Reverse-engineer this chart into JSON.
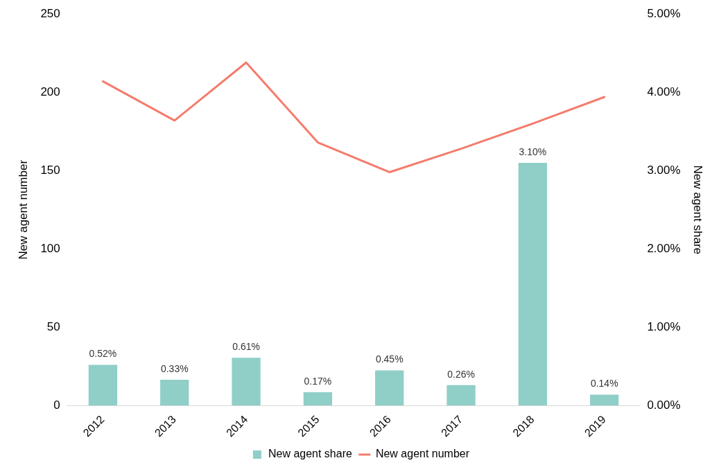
{
  "chart_data": {
    "type": "bar",
    "categories": [
      "2012",
      "2013",
      "2014",
      "2015",
      "2016",
      "2017",
      "2018",
      "2019"
    ],
    "ylabel": "New agent number",
    "y2label": "New agent share",
    "ylim": [
      0,
      250
    ],
    "yticks": [
      0,
      50,
      100,
      150,
      200,
      250
    ],
    "y2lim": [
      0,
      5
    ],
    "y2ticks": [
      {
        "value": 0,
        "label": "0.00%"
      },
      {
        "value": 1,
        "label": "1.00%"
      },
      {
        "value": 2,
        "label": "2.00%"
      },
      {
        "value": 3,
        "label": "3.00%"
      },
      {
        "value": 4,
        "label": "4.00%"
      },
      {
        "value": 5,
        "label": "5.00%"
      }
    ],
    "series": [
      {
        "name": "New agent share",
        "axis": "y2",
        "color": "#8fcfc8",
        "values": [
          0.52,
          0.33,
          0.61,
          0.17,
          0.45,
          0.26,
          3.1,
          0.14
        ],
        "value_labels": [
          "0.52%",
          "0.33%",
          "0.61%",
          "0.17%",
          "0.45%",
          "0.26%",
          "3.10%",
          "0.14%"
        ]
      },
      {
        "name": "New agent number",
        "type": "line",
        "axis": "y",
        "color": "#f47c6c",
        "values": [
          207,
          182,
          219,
          168,
          149,
          164,
          180,
          197
        ]
      }
    ],
    "grid": false,
    "legend": "bottom",
    "marker": "none",
    "line_style": "solid"
  }
}
